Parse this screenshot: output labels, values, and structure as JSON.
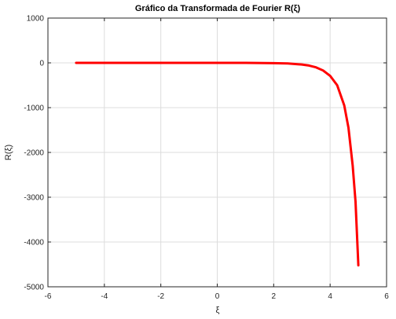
{
  "chart_data": {
    "type": "line",
    "title": "Gráfico da Transformada de Fourier R(ξ)",
    "xlabel": "ξ",
    "ylabel": "R(ξ)",
    "xlim": [
      -6,
      6
    ],
    "ylim": [
      -5000,
      1000
    ],
    "xticks": [
      -6,
      -4,
      -2,
      0,
      2,
      4,
      6
    ],
    "yticks": [
      1000,
      0,
      -1000,
      -2000,
      -3000,
      -4000,
      -5000
    ],
    "xtick_labels": [
      "-6",
      "-4",
      "-2",
      "0",
      "2",
      "4",
      "6"
    ],
    "ytick_labels": [
      "1000",
      "0",
      "-1000",
      "-2000",
      "-3000",
      "-4000",
      "-5000"
    ],
    "grid": true,
    "color": "#ff0000",
    "series": [
      {
        "x": [
          -5,
          -4,
          -3,
          -2,
          -1,
          0,
          1,
          2,
          2.5,
          3,
          3.25,
          3.5,
          3.75,
          4,
          4.25,
          4.5,
          4.65,
          4.8,
          4.9,
          5
        ],
        "y": [
          0,
          0,
          0,
          0,
          0,
          0,
          -1,
          -6,
          -14,
          -37,
          -60,
          -100,
          -170,
          -290,
          -500,
          -950,
          -1450,
          -2300,
          -3100,
          -4520
        ]
      }
    ]
  }
}
